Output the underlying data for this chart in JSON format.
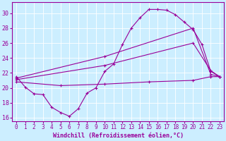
{
  "xlabel": "Windchill (Refroidissement éolien,°C)",
  "background_color": "#cceeff",
  "line_color": "#990099",
  "xlim": [
    -0.5,
    23.5
  ],
  "ylim": [
    15.5,
    31.5
  ],
  "yticks": [
    16,
    18,
    20,
    22,
    24,
    26,
    28,
    30
  ],
  "xticks": [
    0,
    1,
    2,
    3,
    4,
    5,
    6,
    7,
    8,
    9,
    10,
    11,
    12,
    13,
    14,
    15,
    16,
    17,
    18,
    19,
    20,
    21,
    22,
    23
  ],
  "series": [
    {
      "x": [
        0,
        1,
        2,
        3,
        4,
        5,
        6,
        7,
        8,
        9,
        10,
        11,
        12,
        13,
        14,
        15,
        16,
        17,
        18,
        19,
        20,
        21,
        22,
        23
      ],
      "y": [
        21.5,
        20.1,
        19.2,
        19.1,
        17.4,
        16.7,
        16.2,
        17.2,
        19.3,
        20.0,
        22.2,
        23.2,
        25.8,
        28.0,
        29.4,
        30.5,
        30.5,
        30.4,
        29.8,
        28.8,
        27.8,
        25.8,
        22.2,
        21.5
      ]
    },
    {
      "x": [
        0,
        10,
        20,
        22,
        23
      ],
      "y": [
        21.3,
        24.2,
        28.0,
        21.8,
        21.5
      ]
    },
    {
      "x": [
        0,
        10,
        20,
        22,
        23
      ],
      "y": [
        21.1,
        23.0,
        26.0,
        22.3,
        21.5
      ]
    },
    {
      "x": [
        0,
        5,
        10,
        15,
        20,
        22,
        23
      ],
      "y": [
        20.8,
        20.3,
        20.5,
        20.8,
        21.0,
        21.5,
        21.5
      ]
    }
  ]
}
